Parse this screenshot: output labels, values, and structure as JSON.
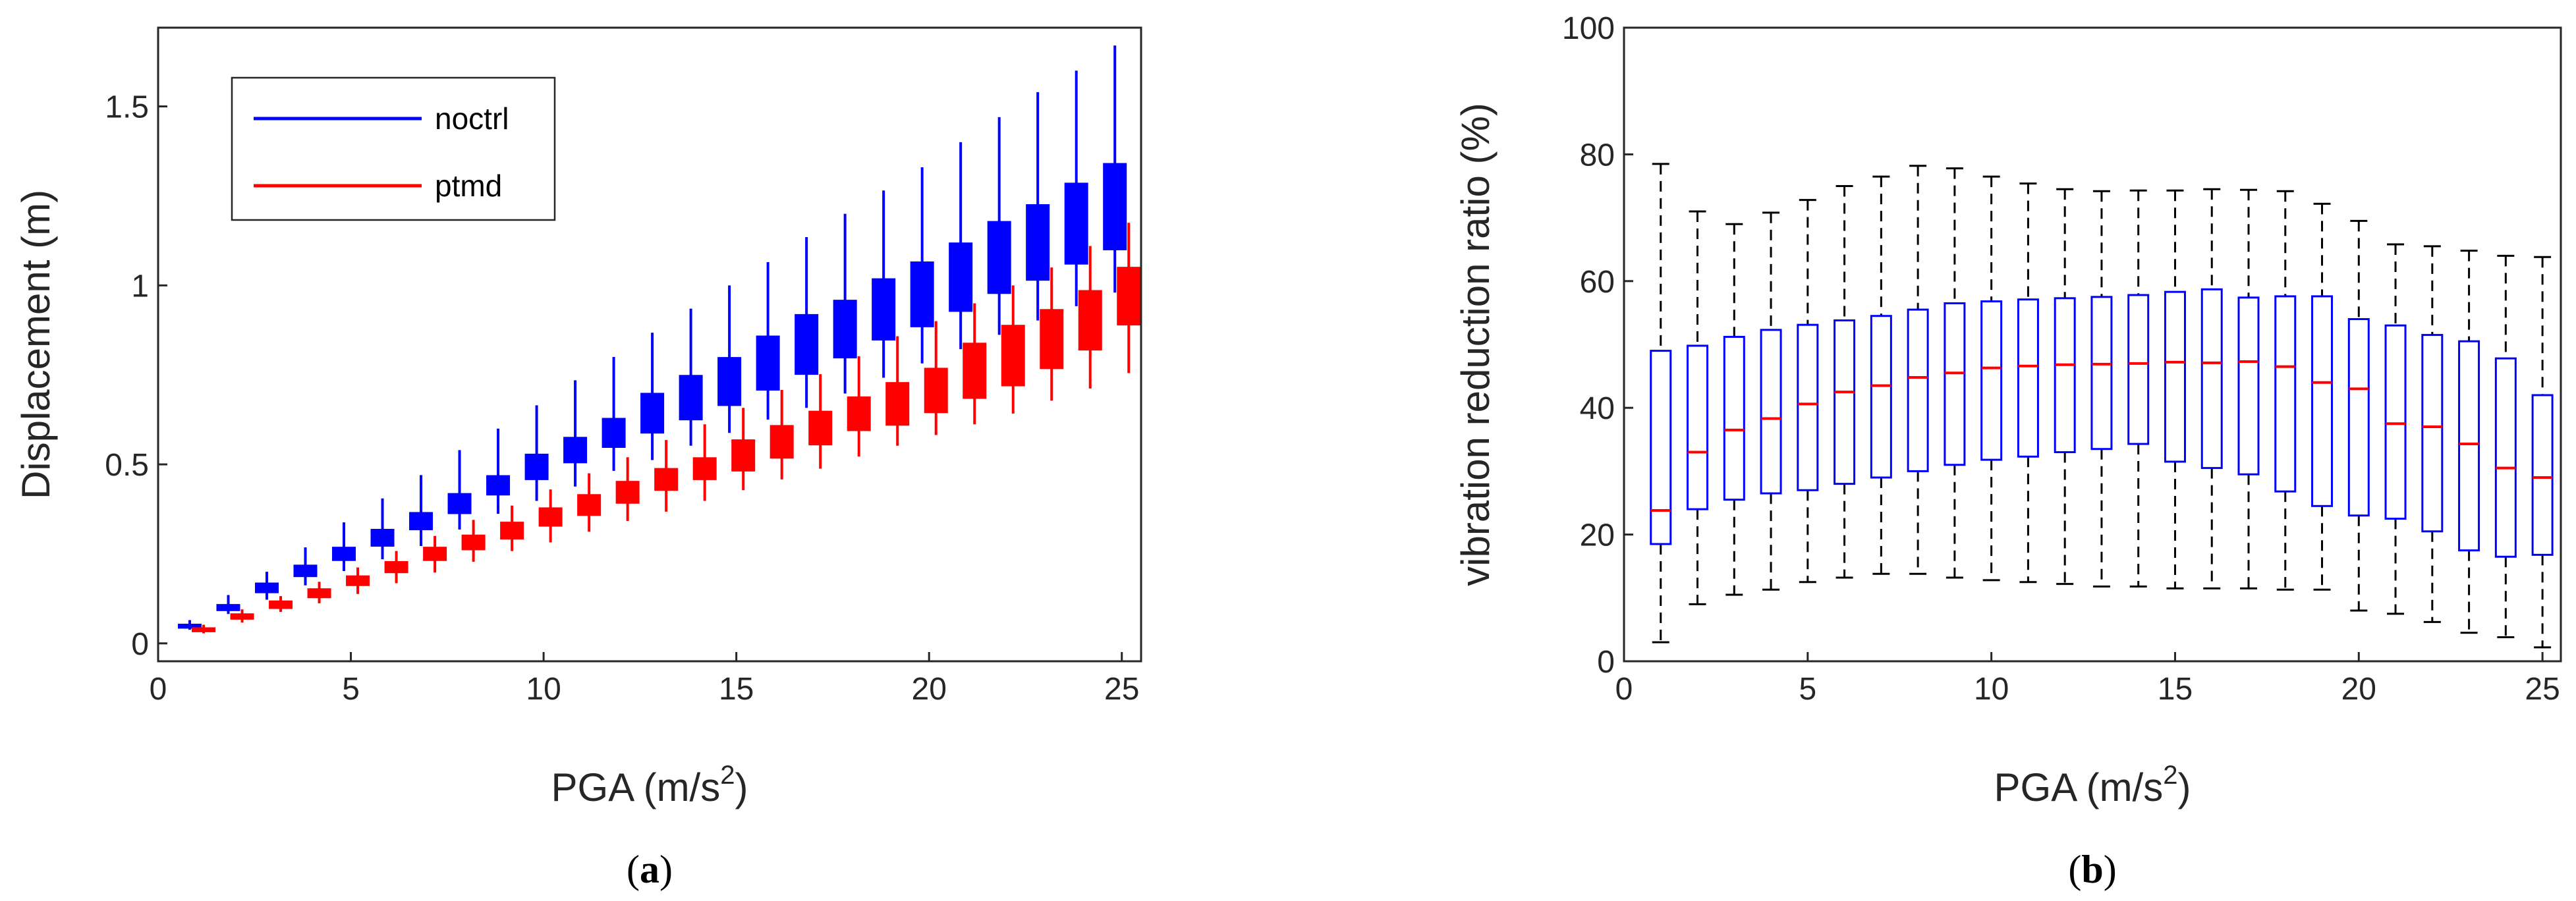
{
  "chart_data": [
    {
      "type": "boxplot",
      "panel_label": "a",
      "title": "",
      "xlabel_base": "PGA (m/s",
      "xlabel_sup": "2",
      "xlabel_close": ")",
      "ylabel": "Displacement (m)",
      "xlim": [
        0,
        25.5
      ],
      "ylim": [
        -0.05,
        1.72
      ],
      "xticks": [
        0,
        5,
        10,
        15,
        20,
        25
      ],
      "yticks": [
        0,
        0.5,
        1,
        1.5
      ],
      "ytick_labels": [
        "0",
        "0.5",
        "1",
        "1.5"
      ],
      "grid": false,
      "legend_position": "top-left",
      "colors": {
        "noctrl": "#0000ff",
        "ptmd": "#ff0000",
        "axis": "#262626"
      },
      "x": [
        1,
        2,
        3,
        4,
        5,
        6,
        7,
        8,
        9,
        10,
        11,
        12,
        13,
        14,
        15,
        16,
        17,
        18,
        19,
        20,
        21,
        22,
        23,
        24,
        25
      ],
      "series": [
        {
          "name": "noctrl",
          "q1": [
            0.043,
            0.092,
            0.142,
            0.187,
            0.232,
            0.272,
            0.318,
            0.363,
            0.415,
            0.458,
            0.505,
            0.548,
            0.588,
            0.625,
            0.665,
            0.708,
            0.752,
            0.798,
            0.848,
            0.885,
            0.928,
            0.978,
            1.015,
            1.06,
            1.1
          ],
          "q3": [
            0.053,
            0.108,
            0.168,
            0.218,
            0.268,
            0.318,
            0.365,
            0.418,
            0.468,
            0.528,
            0.575,
            0.628,
            0.698,
            0.748,
            0.798,
            0.858,
            0.918,
            0.958,
            1.018,
            1.065,
            1.118,
            1.178,
            1.225,
            1.285,
            1.34
          ],
          "median": [
            0.048,
            0.102,
            0.152,
            0.202,
            0.252,
            0.298,
            0.342,
            0.392,
            0.438,
            0.492,
            0.535,
            0.588,
            0.648,
            0.688,
            0.742,
            0.795,
            0.848,
            0.878,
            0.935,
            0.975,
            1.018,
            1.078,
            1.112,
            1.162,
            1.2
          ],
          "whisker_low": [
            0.038,
            0.082,
            0.122,
            0.162,
            0.202,
            0.235,
            0.272,
            0.318,
            0.362,
            0.398,
            0.438,
            0.482,
            0.512,
            0.552,
            0.588,
            0.625,
            0.658,
            0.698,
            0.742,
            0.782,
            0.822,
            0.862,
            0.902,
            0.942,
            0.98
          ],
          "whisker_high": [
            0.065,
            0.135,
            0.2,
            0.268,
            0.338,
            0.405,
            0.47,
            0.54,
            0.6,
            0.665,
            0.735,
            0.8,
            0.868,
            0.935,
            1.0,
            1.065,
            1.135,
            1.2,
            1.265,
            1.33,
            1.4,
            1.47,
            1.54,
            1.6,
            1.67
          ]
        },
        {
          "name": "ptmd",
          "q1": [
            0.033,
            0.068,
            0.098,
            0.128,
            0.162,
            0.198,
            0.232,
            0.262,
            0.292,
            0.328,
            0.358,
            0.392,
            0.428,
            0.458,
            0.482,
            0.518,
            0.555,
            0.595,
            0.61,
            0.645,
            0.685,
            0.72,
            0.768,
            0.82,
            0.89
          ],
          "q3": [
            0.043,
            0.082,
            0.118,
            0.152,
            0.188,
            0.228,
            0.268,
            0.302,
            0.338,
            0.378,
            0.415,
            0.452,
            0.488,
            0.518,
            0.568,
            0.608,
            0.648,
            0.688,
            0.728,
            0.768,
            0.838,
            0.888,
            0.932,
            0.985,
            1.05
          ],
          "median": [
            0.038,
            0.075,
            0.108,
            0.14,
            0.175,
            0.212,
            0.252,
            0.282,
            0.318,
            0.355,
            0.388,
            0.425,
            0.458,
            0.492,
            0.525,
            0.565,
            0.602,
            0.642,
            0.678,
            0.718,
            0.765,
            0.815,
            0.858,
            0.912,
            0.965
          ],
          "whisker_low": [
            0.028,
            0.058,
            0.088,
            0.112,
            0.138,
            0.168,
            0.198,
            0.228,
            0.258,
            0.282,
            0.312,
            0.342,
            0.368,
            0.398,
            0.428,
            0.458,
            0.488,
            0.522,
            0.552,
            0.582,
            0.612,
            0.642,
            0.678,
            0.712,
            0.755
          ],
          "whisker_high": [
            0.052,
            0.095,
            0.132,
            0.172,
            0.212,
            0.258,
            0.3,
            0.345,
            0.385,
            0.43,
            0.475,
            0.52,
            0.568,
            0.612,
            0.658,
            0.708,
            0.752,
            0.802,
            0.858,
            0.9,
            0.95,
            1.0,
            1.05,
            1.11,
            1.175
          ]
        }
      ]
    },
    {
      "type": "boxplot",
      "panel_label": "b",
      "title": "",
      "xlabel_base": "PGA (m/s",
      "xlabel_sup": "2",
      "xlabel_close": ")",
      "ylabel": "vibration reduction ratio (%)",
      "xlim": [
        0,
        25.5
      ],
      "ylim": [
        0,
        100
      ],
      "xticks": [
        0,
        5,
        10,
        15,
        20,
        25
      ],
      "yticks": [
        0,
        20,
        40,
        60,
        80,
        100
      ],
      "ytick_labels": [
        "0",
        "20",
        "40",
        "60",
        "80",
        "100"
      ],
      "grid": false,
      "colors": {
        "box": "#0000ff",
        "median": "#ff0000",
        "whisker": "#000000",
        "axis": "#262626"
      },
      "x": [
        1,
        2,
        3,
        4,
        5,
        6,
        7,
        8,
        9,
        10,
        11,
        12,
        13,
        14,
        15,
        16,
        17,
        18,
        19,
        20,
        21,
        22,
        23,
        24,
        25
      ],
      "q1": [
        18.5,
        24,
        25.5,
        26.5,
        27,
        28,
        29,
        30,
        31,
        31.8,
        32.3,
        33,
        33.5,
        34.3,
        31.5,
        30.5,
        29.5,
        26.8,
        24.5,
        23,
        22.5,
        20.5,
        17.5,
        16.5,
        16.8
      ],
      "q3": [
        49,
        49.8,
        51.2,
        52.3,
        53.1,
        53.8,
        54.5,
        55.5,
        56.5,
        56.8,
        57.1,
        57.3,
        57.5,
        57.8,
        58.3,
        58.7,
        57.4,
        57.6,
        57.6,
        54,
        53,
        51.5,
        50.5,
        47.8,
        42
      ],
      "median": [
        23.8,
        33,
        36.5,
        38.3,
        40.6,
        42.5,
        43.5,
        44.8,
        45.5,
        46.3,
        46.6,
        46.8,
        46.9,
        47,
        47.2,
        47.1,
        47.3,
        46.5,
        44,
        43,
        37.5,
        37,
        34.3,
        30.5,
        29
      ],
      "whisker_low": [
        3,
        9,
        10.5,
        11.3,
        12.5,
        13.2,
        13.8,
        13.8,
        13.2,
        12.8,
        12.5,
        12.2,
        11.8,
        11.8,
        11.5,
        11.5,
        11.5,
        11.3,
        11.3,
        8,
        7.5,
        6.2,
        4.5,
        3.8,
        2.2
      ],
      "whisker_high": [
        78.5,
        71,
        69,
        70.8,
        72.8,
        75,
        76.5,
        78.2,
        77.8,
        76.5,
        75.4,
        74.5,
        74.2,
        74.3,
        74.3,
        74.5,
        74.4,
        74.2,
        72.2,
        69.5,
        65.8,
        65.5,
        64.8,
        64,
        63.8
      ]
    }
  ]
}
